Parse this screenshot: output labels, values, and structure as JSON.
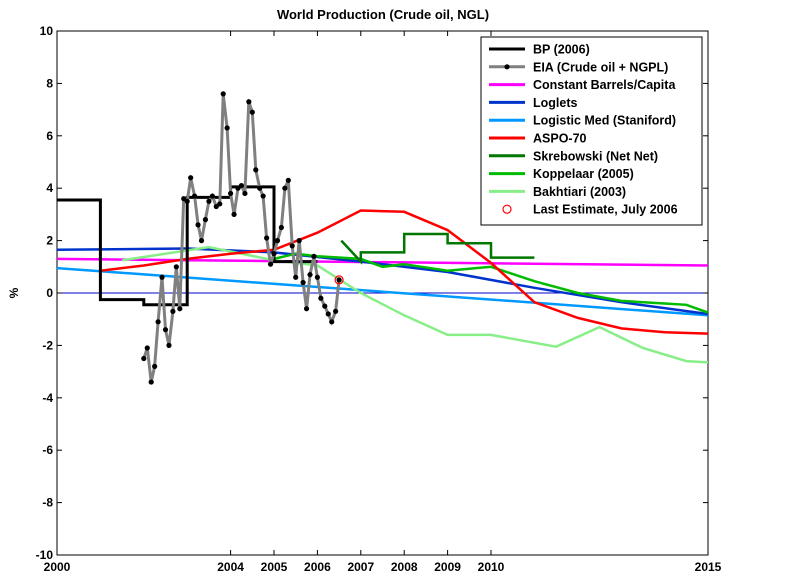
{
  "chart_data": {
    "type": "line",
    "title": "World Production (Crude oil, NGL)",
    "ylabel": "%",
    "xlabel": "",
    "xlim": [
      2000,
      2015
    ],
    "ylim": [
      -10,
      10
    ],
    "xticks": [
      2000,
      2004,
      2005,
      2006,
      2007,
      2008,
      2009,
      2010,
      2015
    ],
    "yticks": [
      -10,
      -8,
      -6,
      -4,
      -2,
      0,
      2,
      4,
      6,
      8,
      10
    ],
    "grid": false,
    "legend_position": "top-right",
    "series": [
      {
        "name": "BP (2006)",
        "color": "#000000",
        "style": "step",
        "x": [
          2000,
          2001,
          2001,
          2002,
          2002,
          2003,
          2003,
          2004,
          2004,
          2005,
          2005,
          2006
        ],
        "y": [
          3.55,
          3.55,
          -0.25,
          -0.25,
          -0.45,
          -0.45,
          3.65,
          3.65,
          4.05,
          4.05,
          1.2,
          1.2
        ]
      },
      {
        "name": "EIA (Crude oil + NGPL)",
        "color": "#808080",
        "style": "line-dots",
        "x": [
          2002.0,
          2002.08,
          2002.17,
          2002.25,
          2002.33,
          2002.42,
          2002.5,
          2002.58,
          2002.67,
          2002.75,
          2002.83,
          2002.92,
          2003.0,
          2003.08,
          2003.17,
          2003.25,
          2003.33,
          2003.42,
          2003.5,
          2003.58,
          2003.67,
          2003.75,
          2003.83,
          2003.92,
          2004.0,
          2004.08,
          2004.17,
          2004.25,
          2004.33,
          2004.42,
          2004.5,
          2004.58,
          2004.67,
          2004.75,
          2004.83,
          2004.92,
          2005.0,
          2005.08,
          2005.17,
          2005.25,
          2005.33,
          2005.42,
          2005.5,
          2005.58,
          2005.67,
          2005.75,
          2005.83,
          2005.92,
          2006.0,
          2006.08,
          2006.17,
          2006.25,
          2006.33,
          2006.42,
          2006.5
        ],
        "y": [
          -2.5,
          -2.1,
          -3.4,
          -2.8,
          -1.1,
          0.6,
          -1.4,
          -2.0,
          -0.7,
          1.0,
          -0.6,
          3.6,
          3.5,
          4.4,
          3.7,
          2.6,
          2.0,
          2.8,
          3.5,
          3.7,
          3.3,
          3.4,
          7.6,
          6.3,
          3.8,
          3.0,
          4.0,
          4.1,
          3.8,
          7.3,
          6.9,
          4.7,
          4.0,
          3.7,
          2.1,
          1.1,
          1.5,
          2.0,
          2.5,
          4.0,
          4.3,
          1.8,
          0.6,
          2.0,
          0.4,
          -0.6,
          0.7,
          1.4,
          0.6,
          -0.2,
          -0.5,
          -0.8,
          -1.1,
          -0.7,
          0.5
        ]
      },
      {
        "name": "Constant Barrels/Capita",
        "color": "#ff00ff",
        "style": "line",
        "x": [
          2000,
          2015
        ],
        "y": [
          1.3,
          1.05
        ]
      },
      {
        "name": "Loglets",
        "color": "#0033cc",
        "style": "line",
        "x": [
          2000,
          2003,
          2005,
          2007,
          2009,
          2011,
          2013,
          2015
        ],
        "y": [
          1.65,
          1.7,
          1.55,
          1.2,
          0.8,
          0.2,
          -0.35,
          -0.8
        ]
      },
      {
        "name": "Logistic Med (Staniford)",
        "color": "#0099ff",
        "style": "line",
        "x": [
          2000,
          2015
        ],
        "y": [
          0.95,
          -0.85
        ]
      },
      {
        "name": "ASPO-70",
        "color": "#ff0000",
        "style": "line",
        "x": [
          2001,
          2002,
          2003,
          2004,
          2005,
          2006,
          2007,
          2008,
          2009,
          2010,
          2011,
          2012,
          2013,
          2014,
          2015
        ],
        "y": [
          0.85,
          1.05,
          1.3,
          1.5,
          1.65,
          2.3,
          3.15,
          3.1,
          2.4,
          1.15,
          -0.35,
          -0.95,
          -1.35,
          -1.5,
          -1.55
        ]
      },
      {
        "name": "Skrebowski (Net Net)",
        "color": "#007700",
        "style": "step",
        "x": [
          2006.55,
          2007.0,
          2007.0,
          2008.0,
          2008.0,
          2009.0,
          2009.0,
          2010.0,
          2010.0,
          2011.0
        ],
        "y": [
          2.0,
          1.2,
          1.55,
          1.55,
          2.25,
          2.25,
          1.9,
          1.9,
          1.35,
          1.35
        ]
      },
      {
        "name": "Koppelaar (2005)",
        "color": "#00bb00",
        "style": "line",
        "x": [
          2005.0,
          2005.5,
          2006.0,
          2007.0,
          2007.5,
          2008.0,
          2009.0,
          2010.0,
          2011.0,
          2012.0,
          2013.0,
          2014.0,
          2014.5,
          2015.0
        ],
        "y": [
          1.3,
          1.5,
          1.4,
          1.3,
          1.0,
          1.1,
          0.85,
          1.0,
          0.45,
          0.0,
          -0.3,
          -0.4,
          -0.45,
          -0.75
        ]
      },
      {
        "name": "Bakhtiari (2003)",
        "color": "#88ee88",
        "style": "line",
        "x": [
          2001.5,
          2003.5,
          2005.0,
          2006.0,
          2007.0,
          2008.0,
          2009.0,
          2010.0,
          2011.5,
          2012.5,
          2013.5,
          2014.5,
          2015.0
        ],
        "y": [
          1.25,
          1.75,
          1.25,
          1.05,
          0.0,
          -0.85,
          -1.6,
          -1.6,
          -2.05,
          -1.3,
          -2.1,
          -2.6,
          -2.65
        ]
      }
    ],
    "last_estimate": {
      "name": "Last Estimate, July 2006",
      "color": "#ff0000",
      "x": 2006.5,
      "y": 0.5
    }
  }
}
